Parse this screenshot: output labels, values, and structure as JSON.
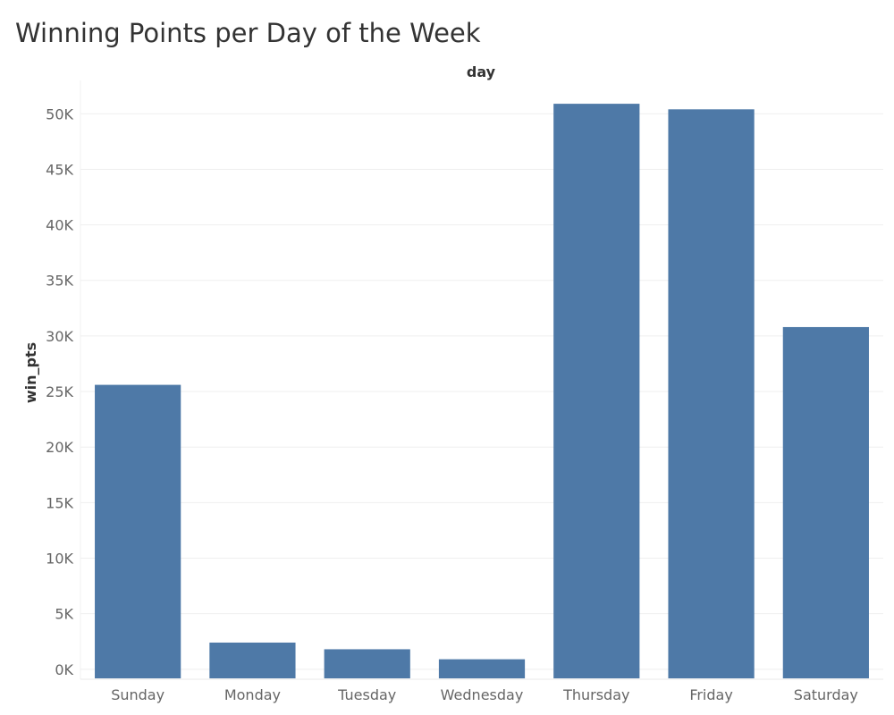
{
  "chart_data": {
    "type": "bar",
    "title": "Winning Points per Day of the Week",
    "column_header": "day",
    "ylabel": "win_pts",
    "categories": [
      "Sunday",
      "Monday",
      "Tuesday",
      "Wednesday",
      "Thursday",
      "Friday",
      "Saturday"
    ],
    "values": [
      25600,
      2400,
      1800,
      900,
      50900,
      50400,
      30800
    ],
    "ylim": [
      -900,
      53000
    ],
    "yticks": [
      0,
      5000,
      10000,
      15000,
      20000,
      25000,
      30000,
      35000,
      40000,
      45000,
      50000
    ],
    "ytick_labels": [
      "0K",
      "5K",
      "10K",
      "15K",
      "20K",
      "25K",
      "30K",
      "35K",
      "40K",
      "45K",
      "50K"
    ],
    "bar_color": "#4e79a7",
    "grid": true
  }
}
